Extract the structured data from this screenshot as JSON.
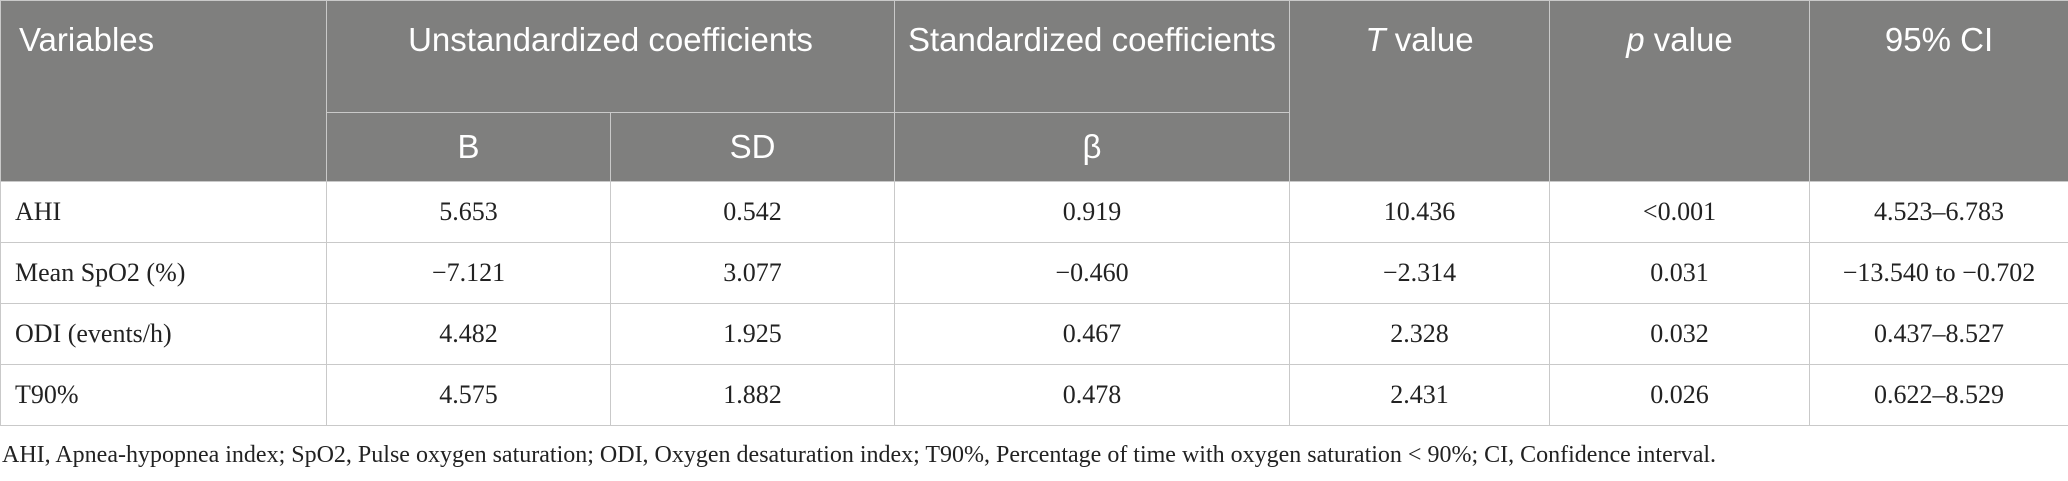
{
  "header": {
    "variables": "Variables",
    "unstandardized": "Unstandardized coefficients",
    "standardized": "Standardized coefficients",
    "t_italic": "T",
    "t_rest": " value",
    "p_italic": "p",
    "p_rest": " value",
    "ci": "95% CI",
    "b": "B",
    "sd": "SD",
    "beta": "β"
  },
  "rows": [
    {
      "variable": "AHI",
      "b": "5.653",
      "sd": "0.542",
      "beta": "0.919",
      "t": "10.436",
      "p": "<0.001",
      "ci": "4.523–6.783"
    },
    {
      "variable": "Mean SpO2 (%)",
      "b": "−7.121",
      "sd": "3.077",
      "beta": "−0.460",
      "t": "−2.314",
      "p": "0.031",
      "ci": "−13.540 to −0.702"
    },
    {
      "variable": "ODI (events/h)",
      "b": "4.482",
      "sd": "1.925",
      "beta": "0.467",
      "t": "2.328",
      "p": "0.032",
      "ci": "0.437–8.527"
    },
    {
      "variable": "T90%",
      "b": "4.575",
      "sd": "1.882",
      "beta": "0.478",
      "t": "2.431",
      "p": "0.026",
      "ci": "0.622–8.529"
    }
  ],
  "footnote": "AHI, Apnea-hypopnea index; SpO2, Pulse oxygen saturation; ODI, Oxygen desaturation index; T90%, Percentage of time with oxygen saturation < 90%; CI, Confidence interval.",
  "colors": {
    "header_bg": "#7f7f7e",
    "header_text": "#ffffff",
    "border": "#c9c9c9"
  }
}
